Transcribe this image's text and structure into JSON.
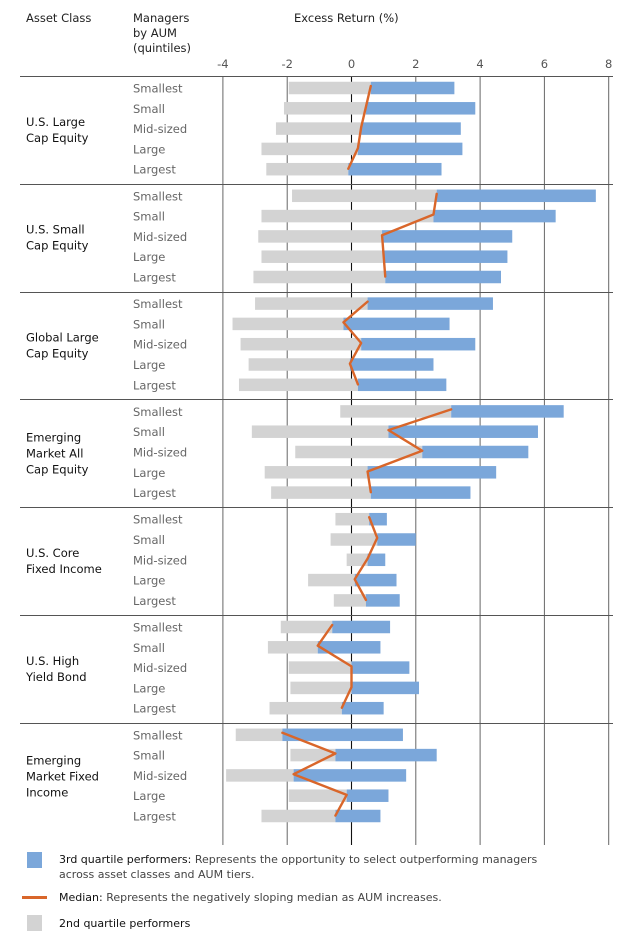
{
  "header": {
    "asset_class": "Asset Class",
    "managers_line1": "Managers",
    "managers_line2": "by AUM",
    "managers_line3": "(quintiles)",
    "excess_return": "Excess Return (%)"
  },
  "legend": {
    "third_quartile_title": "3rd quartile performers:",
    "third_quartile_desc_line1": " Represents the opportunity to select outperforming managers",
    "third_quartile_desc_line2": "across asset classes and AUM tiers.",
    "median_title": "Median:",
    "median_desc": " Represents the negatively sloping median as AUM increases.",
    "second_quartile_title": "2nd quartile performers"
  },
  "colors": {
    "third_quartile": "#7BA7DA",
    "second_quartile": "#D3D3D3",
    "median": "#D9662A",
    "grid": "#666666",
    "zero_line": "#111111"
  },
  "chart_data": {
    "type": "bar",
    "orientation": "horizontal",
    "title": "Excess Return (%)",
    "xlabel": "Excess Return (%)",
    "ylabel": "Managers by AUM (quintiles)",
    "xlim": [
      -4,
      8
    ],
    "xticks": [
      -4,
      -2,
      0,
      2,
      4,
      6,
      8
    ],
    "grid": true,
    "legend_position": "bottom",
    "categories": [
      "Smallest",
      "Small",
      "Mid-sized",
      "Large",
      "Largest"
    ],
    "series_description": "Gray bar spans 2nd quartile (low to median), blue bar spans 3rd quartile (median to high); orange line connects medians",
    "groups": [
      {
        "name": "U.S. Large Cap Equity",
        "label_lines": [
          "U.S. Large",
          "Cap Equity"
        ],
        "q2_low": [
          -1.95,
          -2.1,
          -2.35,
          -2.8,
          -2.65
        ],
        "median": [
          0.6,
          0.45,
          0.3,
          0.2,
          -0.1
        ],
        "q3_high": [
          3.2,
          3.85,
          3.4,
          3.45,
          2.8
        ]
      },
      {
        "name": "U.S. Small Cap Equity",
        "label_lines": [
          "U.S. Small",
          "Cap Equity"
        ],
        "q2_low": [
          -1.85,
          -2.8,
          -2.9,
          -2.8,
          -3.05
        ],
        "median": [
          2.65,
          2.55,
          0.95,
          1.0,
          1.05
        ],
        "q3_high": [
          7.6,
          6.35,
          5.0,
          4.85,
          4.65
        ]
      },
      {
        "name": "Global Large Cap Equity",
        "label_lines": [
          "Global Large",
          "Cap Equity"
        ],
        "q2_low": [
          -3.0,
          -3.7,
          -3.45,
          -3.2,
          -3.5
        ],
        "median": [
          0.5,
          -0.25,
          0.3,
          -0.05,
          0.2
        ],
        "q3_high": [
          4.4,
          3.05,
          3.85,
          2.55,
          2.95
        ]
      },
      {
        "name": "Emerging Market All Cap Equity",
        "label_lines": [
          "Emerging",
          "Market All",
          "Cap Equity"
        ],
        "q2_low": [
          -0.35,
          -3.1,
          -1.75,
          -2.7,
          -2.5
        ],
        "median": [
          3.1,
          1.15,
          2.2,
          0.5,
          0.6
        ],
        "q3_high": [
          6.6,
          5.8,
          5.5,
          4.5,
          3.7
        ]
      },
      {
        "name": "U.S. Core Fixed Income",
        "label_lines": [
          "U.S. Core",
          "Fixed Income"
        ],
        "q2_low": [
          -0.5,
          -0.65,
          -0.15,
          -1.35,
          -0.55
        ],
        "median": [
          0.55,
          0.8,
          0.5,
          0.1,
          0.45
        ],
        "q3_high": [
          1.1,
          2.0,
          1.05,
          1.4,
          1.5
        ]
      },
      {
        "name": "U.S. High Yield Bond",
        "label_lines": [
          "U.S. High",
          "Yield Bond"
        ],
        "q2_low": [
          -2.2,
          -2.6,
          -1.95,
          -1.9,
          -2.55
        ],
        "median": [
          -0.6,
          -1.05,
          0.0,
          0.0,
          -0.3
        ],
        "q3_high": [
          1.2,
          0.9,
          1.8,
          2.1,
          1.0
        ]
      },
      {
        "name": "Emerging Market Fixed Income",
        "label_lines": [
          "Emerging",
          "Market Fixed",
          "Income"
        ],
        "q2_low": [
          -3.6,
          -1.9,
          -3.9,
          -1.95,
          -2.8
        ],
        "median": [
          -2.15,
          -0.5,
          -1.8,
          -0.15,
          -0.5
        ],
        "q3_high": [
          1.6,
          2.65,
          1.7,
          1.15,
          0.9
        ]
      }
    ]
  }
}
